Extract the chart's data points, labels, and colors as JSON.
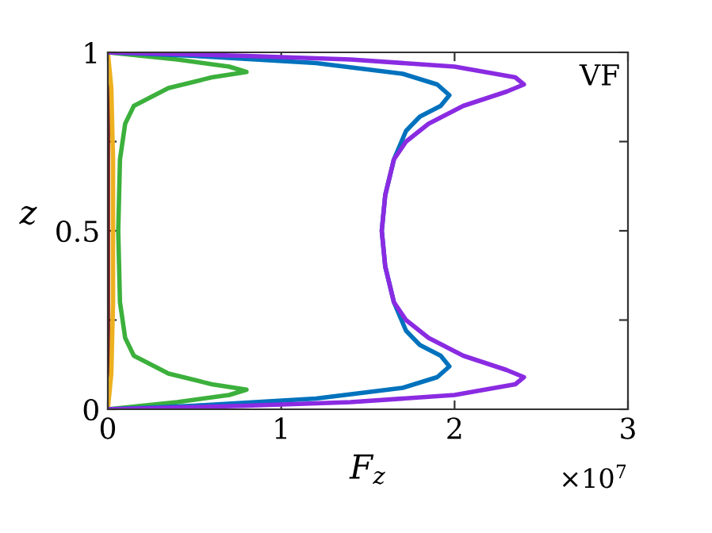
{
  "chart_data": {
    "type": "line",
    "xlabel": "F$_{z}$",
    "ylabel": "z",
    "annotations": [
      "VF",
      "×10$^{7}$"
    ],
    "xlim": [
      0,
      3
    ],
    "xticks": [
      0,
      1,
      2,
      3
    ],
    "ylim": [
      0,
      1
    ],
    "yticks": [
      0,
      {
        "value": 0.25,
        "label": null
      },
      0.5,
      {
        "value": 0.75,
        "label": null
      },
      1
    ],
    "grid": false,
    "line_style": "solid",
    "marker": "none",
    "series": [
      {
        "color": "#7b1010",
        "x": [
          0,
          0,
          0
        ],
        "values": [
          0,
          0.5,
          1
        ]
      },
      {
        "color": "#edb120",
        "x": [
          0,
          0.02,
          0.03,
          0.03,
          0.02,
          0
        ],
        "values": [
          0,
          0.1,
          0.3,
          0.7,
          0.9,
          1
        ]
      },
      {
        "color": "#3cb03c",
        "x": [
          0,
          0.4,
          0.7,
          0.8,
          0.6,
          0.35,
          0.15,
          0.1,
          0.07,
          0.06,
          0.07,
          0.1,
          0.15,
          0.35,
          0.6,
          0.8,
          0.7,
          0.4,
          0
        ],
        "values": [
          0,
          0.02,
          0.04,
          0.055,
          0.07,
          0.1,
          0.15,
          0.2,
          0.3,
          0.5,
          0.7,
          0.8,
          0.85,
          0.9,
          0.93,
          0.945,
          0.96,
          0.98,
          1
        ]
      },
      {
        "color": "#0072bd",
        "x": [
          0,
          0.5,
          1.2,
          1.7,
          1.9,
          1.97,
          1.92,
          1.8,
          1.72,
          1.65,
          1.6,
          1.58,
          1.6,
          1.65,
          1.72,
          1.8,
          1.92,
          1.97,
          1.9,
          1.7,
          1.2,
          0.5,
          0
        ],
        "values": [
          0,
          0.01,
          0.03,
          0.06,
          0.09,
          0.12,
          0.15,
          0.18,
          0.22,
          0.3,
          0.4,
          0.5,
          0.6,
          0.7,
          0.78,
          0.82,
          0.85,
          0.88,
          0.91,
          0.94,
          0.97,
          0.99,
          1
        ]
      },
      {
        "color": "#8a2be2",
        "x": [
          0,
          0.8,
          1.4,
          2.0,
          2.35,
          2.4,
          2.3,
          2.05,
          1.85,
          1.72,
          1.65,
          1.6,
          1.58,
          1.6,
          1.65,
          1.72,
          1.85,
          2.05,
          2.3,
          2.4,
          2.35,
          2.0,
          1.4,
          0.8,
          0
        ],
        "values": [
          0,
          0.01,
          0.02,
          0.04,
          0.07,
          0.09,
          0.11,
          0.15,
          0.2,
          0.25,
          0.3,
          0.4,
          0.5,
          0.6,
          0.7,
          0.75,
          0.8,
          0.85,
          0.89,
          0.91,
          0.93,
          0.96,
          0.98,
          0.99,
          1
        ]
      }
    ]
  }
}
